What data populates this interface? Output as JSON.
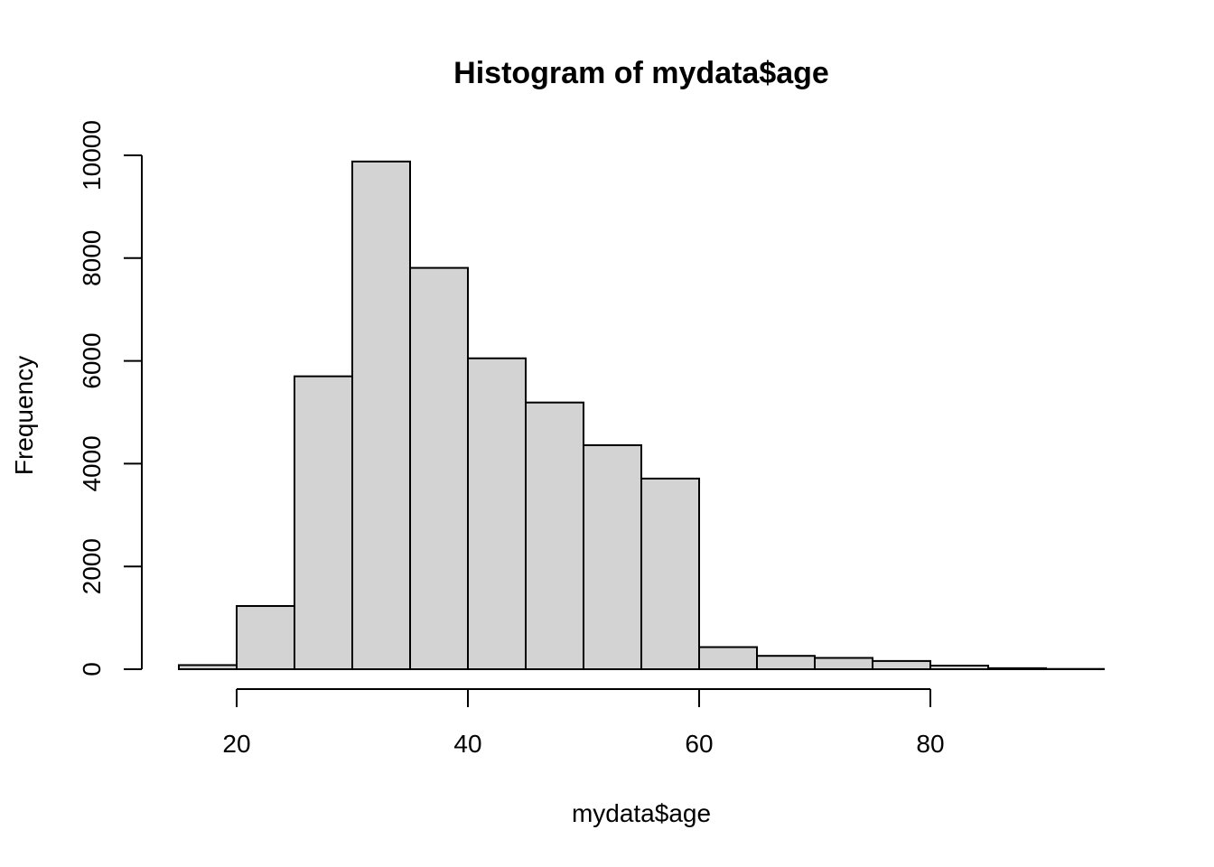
{
  "chart_data": {
    "type": "bar",
    "title": "Histogram of mydata$age",
    "xlabel": "mydata$age",
    "ylabel": "Frequency",
    "bin_edges": [
      15,
      20,
      25,
      30,
      35,
      40,
      45,
      50,
      55,
      60,
      65,
      70,
      75,
      80,
      85,
      90,
      95
    ],
    "values": [
      80,
      1230,
      5700,
      9880,
      7810,
      6050,
      5190,
      4360,
      3710,
      430,
      260,
      220,
      160,
      70,
      20,
      5
    ],
    "xlim": [
      15,
      95
    ],
    "ylim": [
      0,
      10000
    ],
    "x_ticks": [
      20,
      40,
      60,
      80
    ],
    "y_ticks": [
      0,
      2000,
      4000,
      6000,
      8000,
      10000
    ],
    "grid": false,
    "bar_color": "#d3d3d3",
    "edge_color": "#000000"
  }
}
